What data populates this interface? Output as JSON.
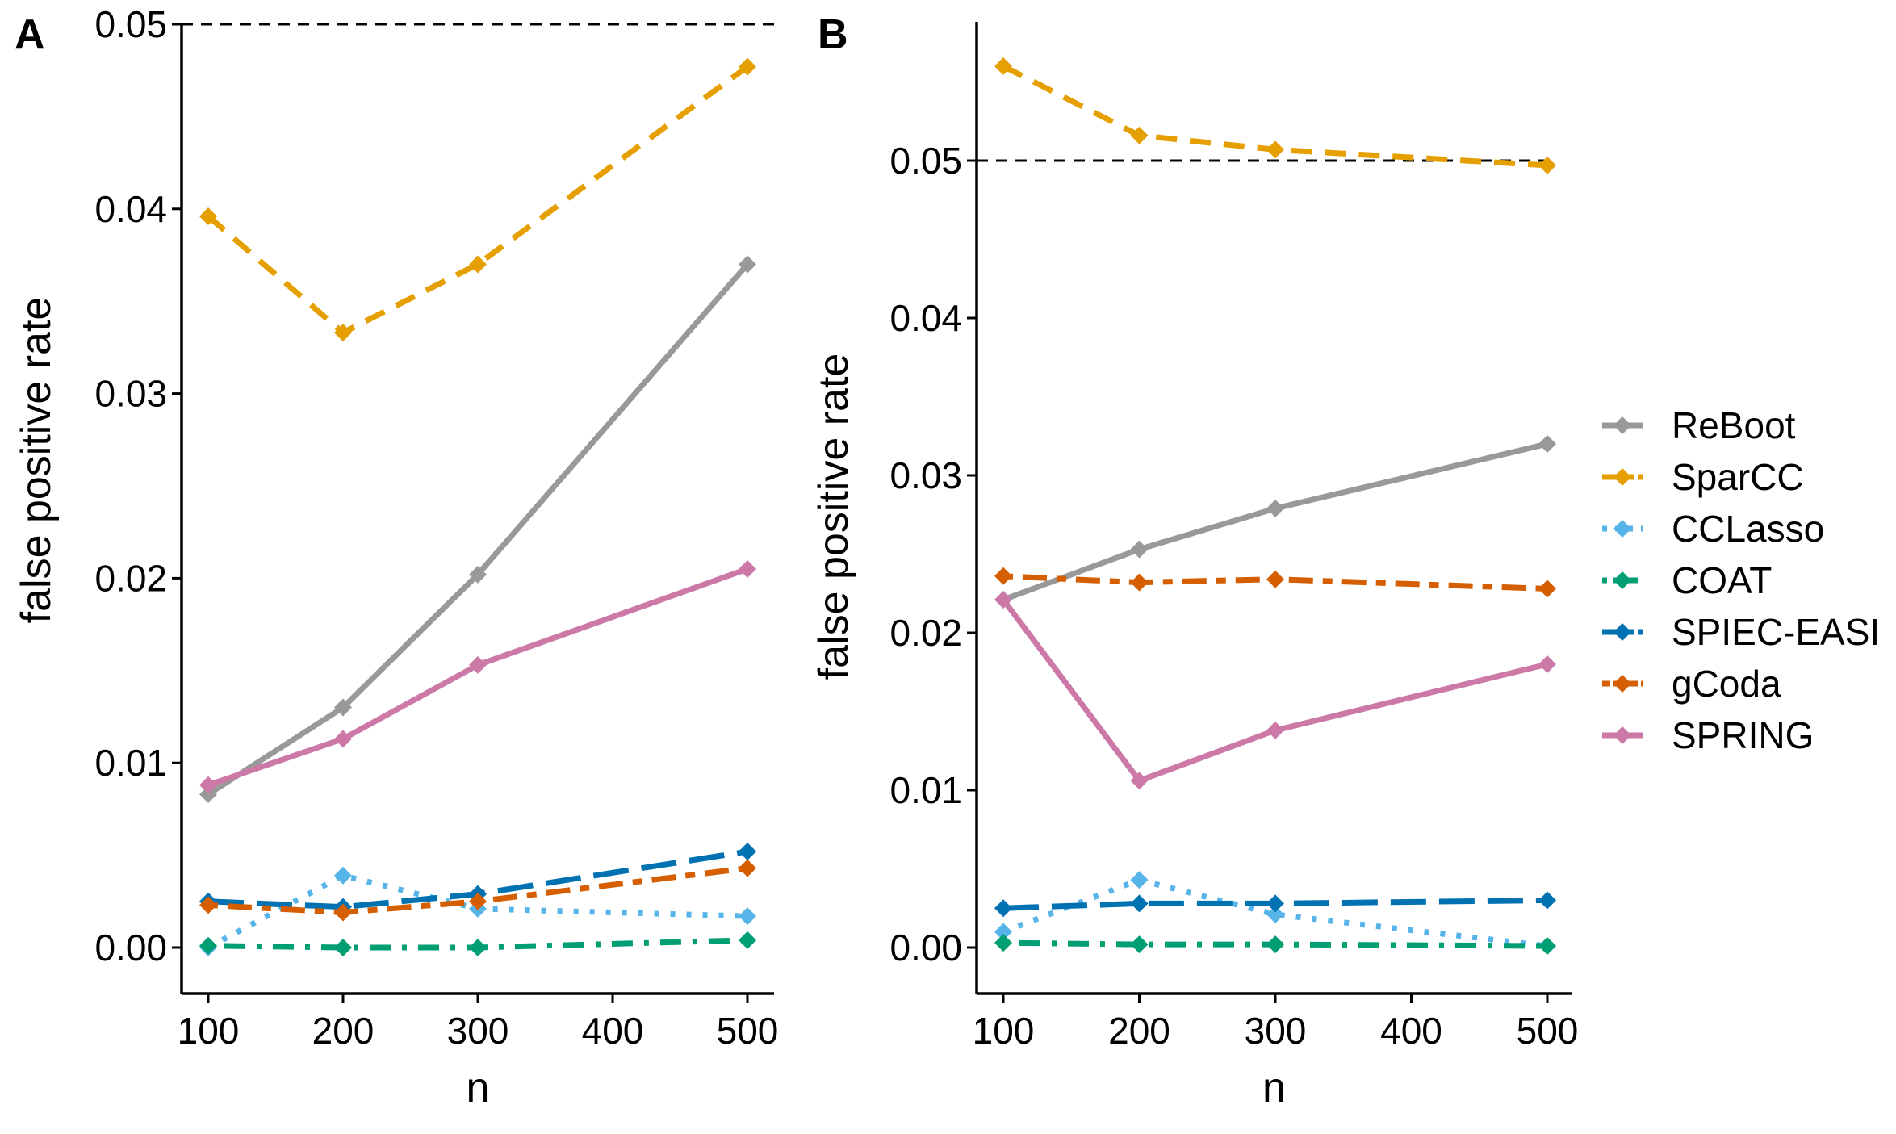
{
  "chart_data": [
    {
      "panel": "A",
      "type": "line",
      "xlabel": "n",
      "ylabel": "false positive rate",
      "x": [
        100,
        200,
        300,
        500
      ],
      "xticks": [
        100,
        200,
        300,
        400,
        500
      ],
      "xlim": [
        90,
        520
      ],
      "ylim": [
        -0.0025,
        0.05
      ],
      "yticks": [
        "0.00",
        "0.01",
        "0.02",
        "0.03",
        "0.04",
        "0.05"
      ],
      "ytick_values": [
        0,
        0.01,
        0.02,
        0.03,
        0.04,
        0.05
      ],
      "reference_line": 0.05,
      "series": [
        {
          "name": "ReBoot",
          "values": [
            0.0083,
            0.013,
            0.0202,
            0.037
          ]
        },
        {
          "name": "SparCC",
          "values": [
            0.0396,
            0.0333,
            0.037,
            0.0477
          ]
        },
        {
          "name": "CCLasso",
          "values": [
            0.0,
            0.0039,
            0.0021,
            0.0017
          ]
        },
        {
          "name": "COAT",
          "values": [
            0.0001,
            0.0,
            0.0,
            0.0004
          ]
        },
        {
          "name": "SPIEC-EASI",
          "values": [
            0.0025,
            0.0022,
            0.0029,
            0.0052
          ]
        },
        {
          "name": "gCoda",
          "values": [
            0.0023,
            0.0019,
            0.0025,
            0.0043
          ]
        },
        {
          "name": "SPRING",
          "values": [
            0.0088,
            0.0113,
            0.0153,
            0.0205
          ]
        }
      ]
    },
    {
      "panel": "B",
      "type": "line",
      "xlabel": "n",
      "ylabel": "false positive rate",
      "x": [
        100,
        200,
        300,
        500
      ],
      "xticks": [
        100,
        200,
        300,
        400,
        500
      ],
      "xlim": [
        90,
        520
      ],
      "ylim": [
        -0.0025,
        0.0588
      ],
      "yticks": [
        "0.00",
        "0.01",
        "0.02",
        "0.03",
        "0.04",
        "0.05"
      ],
      "ytick_values": [
        0,
        0.01,
        0.02,
        0.03,
        0.04,
        0.05
      ],
      "reference_line": 0.05,
      "series": [
        {
          "name": "ReBoot",
          "values": [
            0.0221,
            0.0253,
            0.0279,
            0.032
          ]
        },
        {
          "name": "SparCC",
          "values": [
            0.056,
            0.0516,
            0.0507,
            0.0497
          ]
        },
        {
          "name": "CCLasso",
          "values": [
            0.001,
            0.0043,
            0.0021,
            0.0001
          ]
        },
        {
          "name": "COAT",
          "values": [
            0.0003,
            0.0002,
            0.0002,
            0.0001
          ]
        },
        {
          "name": "SPIEC-EASI",
          "values": [
            0.0025,
            0.0028,
            0.0028,
            0.003
          ]
        },
        {
          "name": "gCoda",
          "values": [
            0.0236,
            0.0232,
            0.0234,
            0.0228
          ]
        },
        {
          "name": "SPRING",
          "values": [
            0.0221,
            0.0106,
            0.0138,
            0.018
          ]
        }
      ]
    }
  ],
  "legend": {
    "placement": "right",
    "items": [
      {
        "name": "ReBoot",
        "color": "#999999",
        "linetype": "solid"
      },
      {
        "name": "SparCC",
        "color": "#E69F00",
        "linetype": "dashed"
      },
      {
        "name": "CCLasso",
        "color": "#56B4E9",
        "linetype": "dotted"
      },
      {
        "name": "COAT",
        "color": "#009E73",
        "linetype": "dotdash"
      },
      {
        "name": "SPIEC-EASI",
        "color": "#0072B2",
        "linetype": "longdash"
      },
      {
        "name": "gCoda",
        "color": "#D55E00",
        "linetype": "twodash"
      },
      {
        "name": "SPRING",
        "color": "#CC79A7",
        "linetype": "solid"
      }
    ]
  },
  "panels": {
    "a_tag": "A",
    "b_tag": "B"
  }
}
